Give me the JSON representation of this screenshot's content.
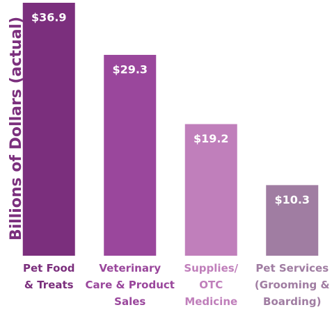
{
  "chart_data": {
    "type": "bar",
    "y_label": "Billions of Dollars (actual)",
    "categories": [
      "Pet Food\n& Treats",
      "Veterinary\nCare & Product\nSales",
      "Supplies/\nOTC\nMedicine",
      "Pet Services\n(Grooming &\nBoarding)"
    ],
    "values": [
      36.9,
      29.3,
      19.2,
      10.3
    ],
    "value_labels": [
      "$36.9",
      "$29.3",
      "$19.2",
      "$10.3"
    ],
    "colors": [
      "#7b2f7d",
      "#9a479c",
      "#c07fbb",
      "#a07da2"
    ],
    "ylim": [
      0,
      37
    ]
  }
}
